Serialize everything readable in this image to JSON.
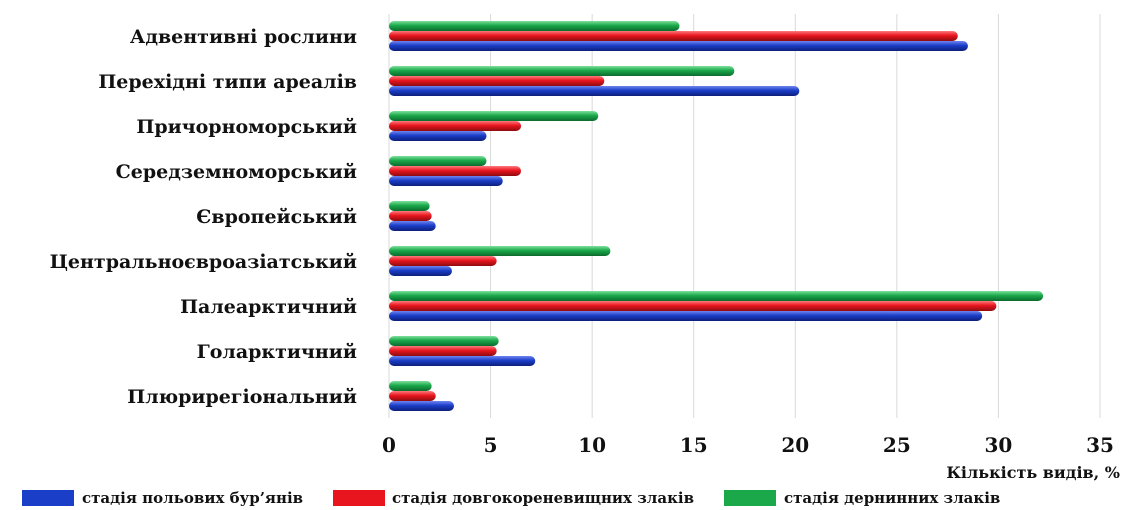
{
  "chart_data": {
    "type": "bar",
    "orientation": "horizontal",
    "title": "",
    "xlabel": "Кількість видів, %",
    "ylabel": "",
    "xlim": [
      0,
      35
    ],
    "xticks": [
      0,
      5,
      10,
      15,
      20,
      25,
      30,
      35
    ],
    "grid": "vertical",
    "legend": "bottom",
    "categories": [
      "Адвентивні рослини",
      "Перехідні типи ареалів",
      "Причорноморський",
      "Середземноморський",
      "Європейський",
      "Центральноєвроазіатський",
      "Палеарктичний",
      "Голарктичний",
      "Плюрирегіональний"
    ],
    "series": [
      {
        "name": "стадія польових бур’янів",
        "color": "#1b3ec8",
        "values": [
          28.5,
          20.2,
          4.8,
          5.6,
          2.3,
          3.1,
          29.2,
          7.2,
          3.2
        ]
      },
      {
        "name": "стадія довгокореневищних злаків",
        "color": "#e8151e",
        "values": [
          28.0,
          10.6,
          6.5,
          6.5,
          2.1,
          5.3,
          29.9,
          5.3,
          2.3
        ]
      },
      {
        "name": "стадія дернинних злаків",
        "color": "#1aa84a",
        "values": [
          14.3,
          17.0,
          10.3,
          4.8,
          2.0,
          10.9,
          32.2,
          5.4,
          2.1
        ]
      }
    ]
  }
}
